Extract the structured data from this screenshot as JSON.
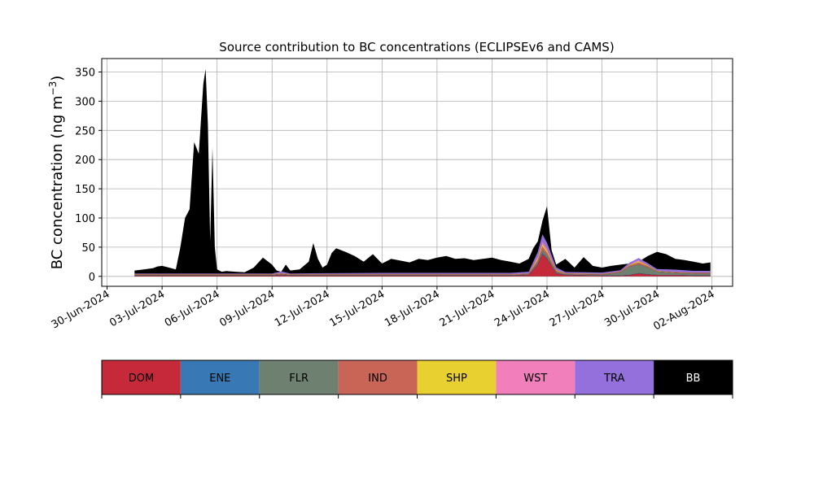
{
  "chart_data": {
    "type": "area",
    "stacked": true,
    "title": "Source contribution to BC concentrations (ECLIPSEv6 and CAMS)",
    "ylabel": "BC concentration (ng m",
    "ylabel_sup": "−3",
    "ylabel_close": ")",
    "ylim": [
      -17,
      373
    ],
    "yticks": [
      0,
      50,
      100,
      150,
      200,
      250,
      300,
      350
    ],
    "xlim": [
      "2024-06-29T17:00",
      "2024-08-03T03:00"
    ],
    "xticks": [
      "2024-06-30",
      "2024-07-03",
      "2024-07-06",
      "2024-07-09",
      "2024-07-12",
      "2024-07-15",
      "2024-07-18",
      "2024-07-21",
      "2024-07-24",
      "2024-07-27",
      "2024-07-30",
      "2024-08-02"
    ],
    "xtick_labels": [
      "30-Jun-2024",
      "03-Jul-2024",
      "06-Jul-2024",
      "09-Jul-2024",
      "12-Jul-2024",
      "15-Jul-2024",
      "18-Jul-2024",
      "21-Jul-2024",
      "24-Jul-2024",
      "27-Jul-2024",
      "30-Jul-2024",
      "02-Aug-2024"
    ],
    "grid": true,
    "total_bc": {
      "x": [
        "2024-07-01T12:00",
        "2024-07-02T00:00",
        "2024-07-02T12:00",
        "2024-07-02T18:00",
        "2024-07-03T00:00",
        "2024-07-03T06:00",
        "2024-07-03T12:00",
        "2024-07-03T18:00",
        "2024-07-04T00:00",
        "2024-07-04T06:00",
        "2024-07-04T12:00",
        "2024-07-04T18:00",
        "2024-07-05T00:00",
        "2024-07-05T06:00",
        "2024-07-05T09:00",
        "2024-07-05T12:00",
        "2024-07-05T15:00",
        "2024-07-05T18:00",
        "2024-07-05T21:00",
        "2024-07-06T00:00",
        "2024-07-06T06:00",
        "2024-07-06T12:00",
        "2024-07-07T00:00",
        "2024-07-07T12:00",
        "2024-07-08T00:00",
        "2024-07-08T12:00",
        "2024-07-09T00:00",
        "2024-07-09T06:00",
        "2024-07-09T12:00",
        "2024-07-09T18:00",
        "2024-07-10T00:00",
        "2024-07-10T12:00",
        "2024-07-11T00:00",
        "2024-07-11T06:00",
        "2024-07-11T12:00",
        "2024-07-11T18:00",
        "2024-07-12T00:00",
        "2024-07-12T06:00",
        "2024-07-12T12:00",
        "2024-07-13T00:00",
        "2024-07-13T12:00",
        "2024-07-14T00:00",
        "2024-07-14T12:00",
        "2024-07-15T00:00",
        "2024-07-15T12:00",
        "2024-07-16T00:00",
        "2024-07-16T12:00",
        "2024-07-17T00:00",
        "2024-07-17T12:00",
        "2024-07-18T00:00",
        "2024-07-18T12:00",
        "2024-07-19T00:00",
        "2024-07-19T12:00",
        "2024-07-20T00:00",
        "2024-07-20T12:00",
        "2024-07-21T00:00",
        "2024-07-21T12:00",
        "2024-07-22T00:00",
        "2024-07-22T12:00",
        "2024-07-23T00:00",
        "2024-07-23T06:00",
        "2024-07-23T12:00",
        "2024-07-23T18:00",
        "2024-07-24T00:00",
        "2024-07-24T06:00",
        "2024-07-24T12:00",
        "2024-07-25T00:00",
        "2024-07-25T12:00",
        "2024-07-26T00:00",
        "2024-07-26T12:00",
        "2024-07-27T00:00",
        "2024-07-27T12:00",
        "2024-07-28T00:00",
        "2024-07-28T12:00",
        "2024-07-29T00:00",
        "2024-07-29T12:00",
        "2024-07-30T00:00",
        "2024-07-30T12:00",
        "2024-07-31T00:00",
        "2024-07-31T12:00",
        "2024-08-01T00:00",
        "2024-08-01T12:00",
        "2024-08-01T22:00"
      ],
      "y": [
        10,
        12,
        14,
        17,
        18,
        16,
        14,
        12,
        50,
        100,
        115,
        230,
        210,
        330,
        355,
        260,
        60,
        220,
        50,
        12,
        8,
        9,
        8,
        7,
        15,
        32,
        20,
        10,
        8,
        20,
        10,
        12,
        25,
        57,
        30,
        15,
        20,
        40,
        48,
        42,
        35,
        25,
        38,
        22,
        30,
        27,
        24,
        30,
        28,
        32,
        35,
        30,
        31,
        28,
        30,
        32,
        28,
        25,
        22,
        30,
        48,
        60,
        95,
        120,
        45,
        20,
        30,
        15,
        33,
        18,
        15,
        18,
        20,
        22,
        25,
        35,
        42,
        38,
        30,
        28,
        25,
        22,
        24
      ]
    },
    "sources": {
      "x": [
        "2024-07-01T12:00",
        "2024-07-09T00:00",
        "2024-07-09T12:00",
        "2024-07-10T00:00",
        "2024-07-15T00:00",
        "2024-07-20T00:00",
        "2024-07-22T00:00",
        "2024-07-23T00:00",
        "2024-07-23T12:00",
        "2024-07-23T18:00",
        "2024-07-24T00:00",
        "2024-07-24T12:00",
        "2024-07-25T00:00",
        "2024-07-27T00:00",
        "2024-07-28T00:00",
        "2024-07-28T12:00",
        "2024-07-29T00:00",
        "2024-07-29T12:00",
        "2024-07-30T00:00",
        "2024-07-31T00:00",
        "2024-08-01T00:00",
        "2024-08-01T22:00"
      ],
      "DOM": [
        1,
        1,
        2,
        1,
        1,
        1,
        1,
        2,
        20,
        38,
        30,
        5,
        2,
        1,
        1,
        2,
        5,
        3,
        2,
        2,
        1,
        1
      ],
      "ENE": [
        0.5,
        0.5,
        0.5,
        0.5,
        0.5,
        0.5,
        0.5,
        0.5,
        1,
        2,
        1.5,
        0.5,
        0.5,
        0.5,
        0.5,
        0.5,
        0.5,
        0.5,
        0.5,
        0.5,
        0.5,
        0.5
      ],
      "FLR": [
        0.5,
        0.5,
        1,
        0.5,
        0.5,
        0.5,
        0.5,
        0.5,
        3,
        5,
        4,
        2,
        1,
        1,
        5,
        14,
        15,
        12,
        5,
        3,
        3,
        3
      ],
      "IND": [
        1,
        1,
        1,
        1,
        1,
        1,
        1,
        1,
        4,
        6,
        5,
        2,
        1,
        1,
        1,
        2,
        3,
        2,
        1,
        1,
        1,
        1
      ],
      "SHP": [
        0.5,
        0.5,
        0.5,
        0.5,
        0.5,
        0.5,
        0.5,
        0.5,
        3,
        4,
        3,
        1,
        0.5,
        0.5,
        0.5,
        1,
        2,
        1,
        0.5,
        0.5,
        0.5,
        0.5
      ],
      "WST": [
        0.5,
        0.5,
        0.5,
        0.5,
        0.5,
        0.5,
        0.5,
        0.5,
        3,
        5,
        4,
        1,
        0.5,
        0.5,
        0.5,
        1,
        2,
        1,
        0.5,
        0.5,
        0.5,
        0.5
      ],
      "TRA": [
        1,
        1,
        3,
        1,
        2,
        2,
        2,
        3,
        8,
        12,
        10,
        4,
        2,
        2,
        2,
        3,
        4,
        3,
        3,
        4,
        3,
        3
      ]
    },
    "legend": {
      "placement": "bottom",
      "entries": [
        {
          "label": "DOM",
          "color": "#c62a3a"
        },
        {
          "label": "ENE",
          "color": "#3778b5"
        },
        {
          "label": "FLR",
          "color": "#6e8070"
        },
        {
          "label": "IND",
          "color": "#c96556"
        },
        {
          "label": "SHP",
          "color": "#e8d030"
        },
        {
          "label": "WST",
          "color": "#f07fbc"
        },
        {
          "label": "TRA",
          "color": "#9370db"
        },
        {
          "label": "BB",
          "color": "#000000",
          "text_color": "#ffffff"
        }
      ]
    }
  }
}
